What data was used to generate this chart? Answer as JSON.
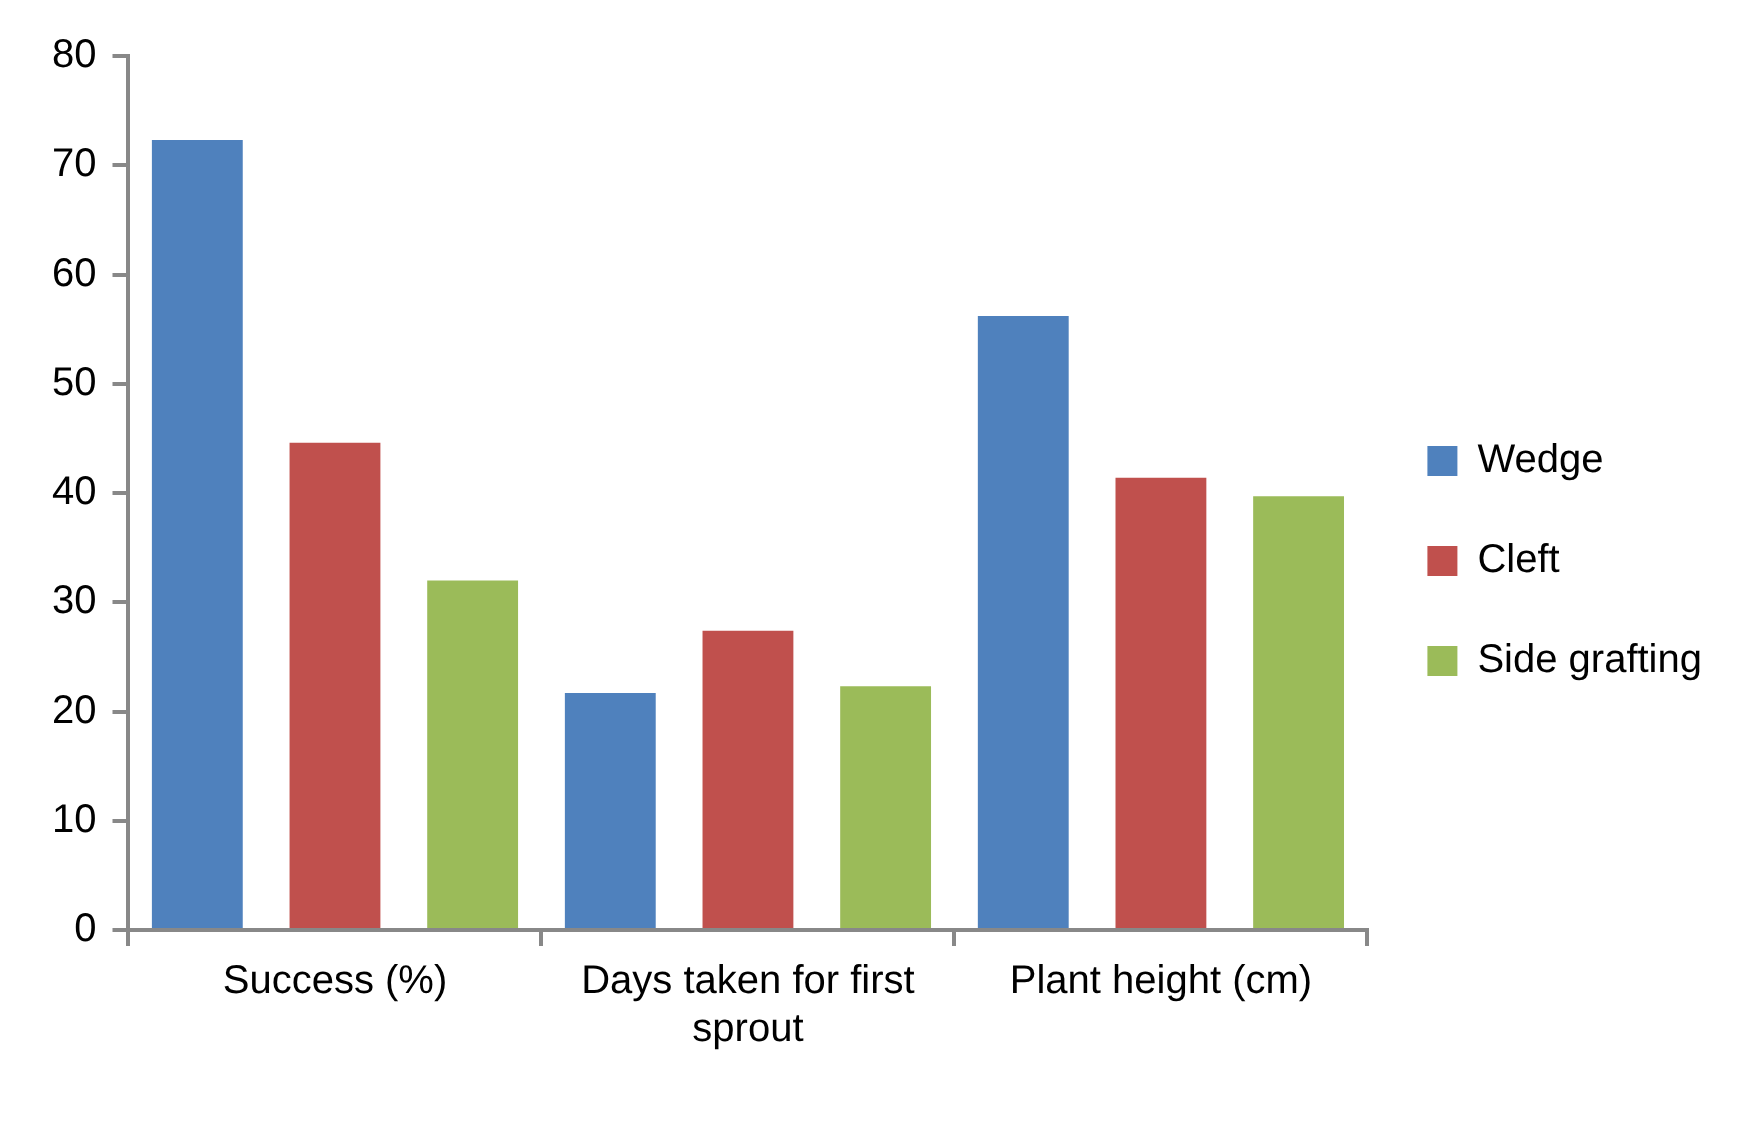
{
  "chart_data": {
    "type": "bar",
    "categories": [
      "Success (%)",
      "Days taken for first sprout",
      "Plant height (cm)"
    ],
    "series": [
      {
        "name": "Wedge",
        "color": "#4f81bd",
        "values": [
          72.3,
          21.7,
          56.2
        ]
      },
      {
        "name": "Cleft",
        "color": "#c0504d",
        "values": [
          44.6,
          27.4,
          41.4
        ]
      },
      {
        "name": "Side grafting",
        "color": "#9bbb59",
        "values": [
          32.0,
          22.3,
          39.7
        ]
      }
    ],
    "ylim": [
      0,
      80
    ],
    "yticks": [
      0,
      10,
      20,
      30,
      40,
      50,
      60,
      70,
      80
    ],
    "grid": false,
    "legend": "right"
  }
}
